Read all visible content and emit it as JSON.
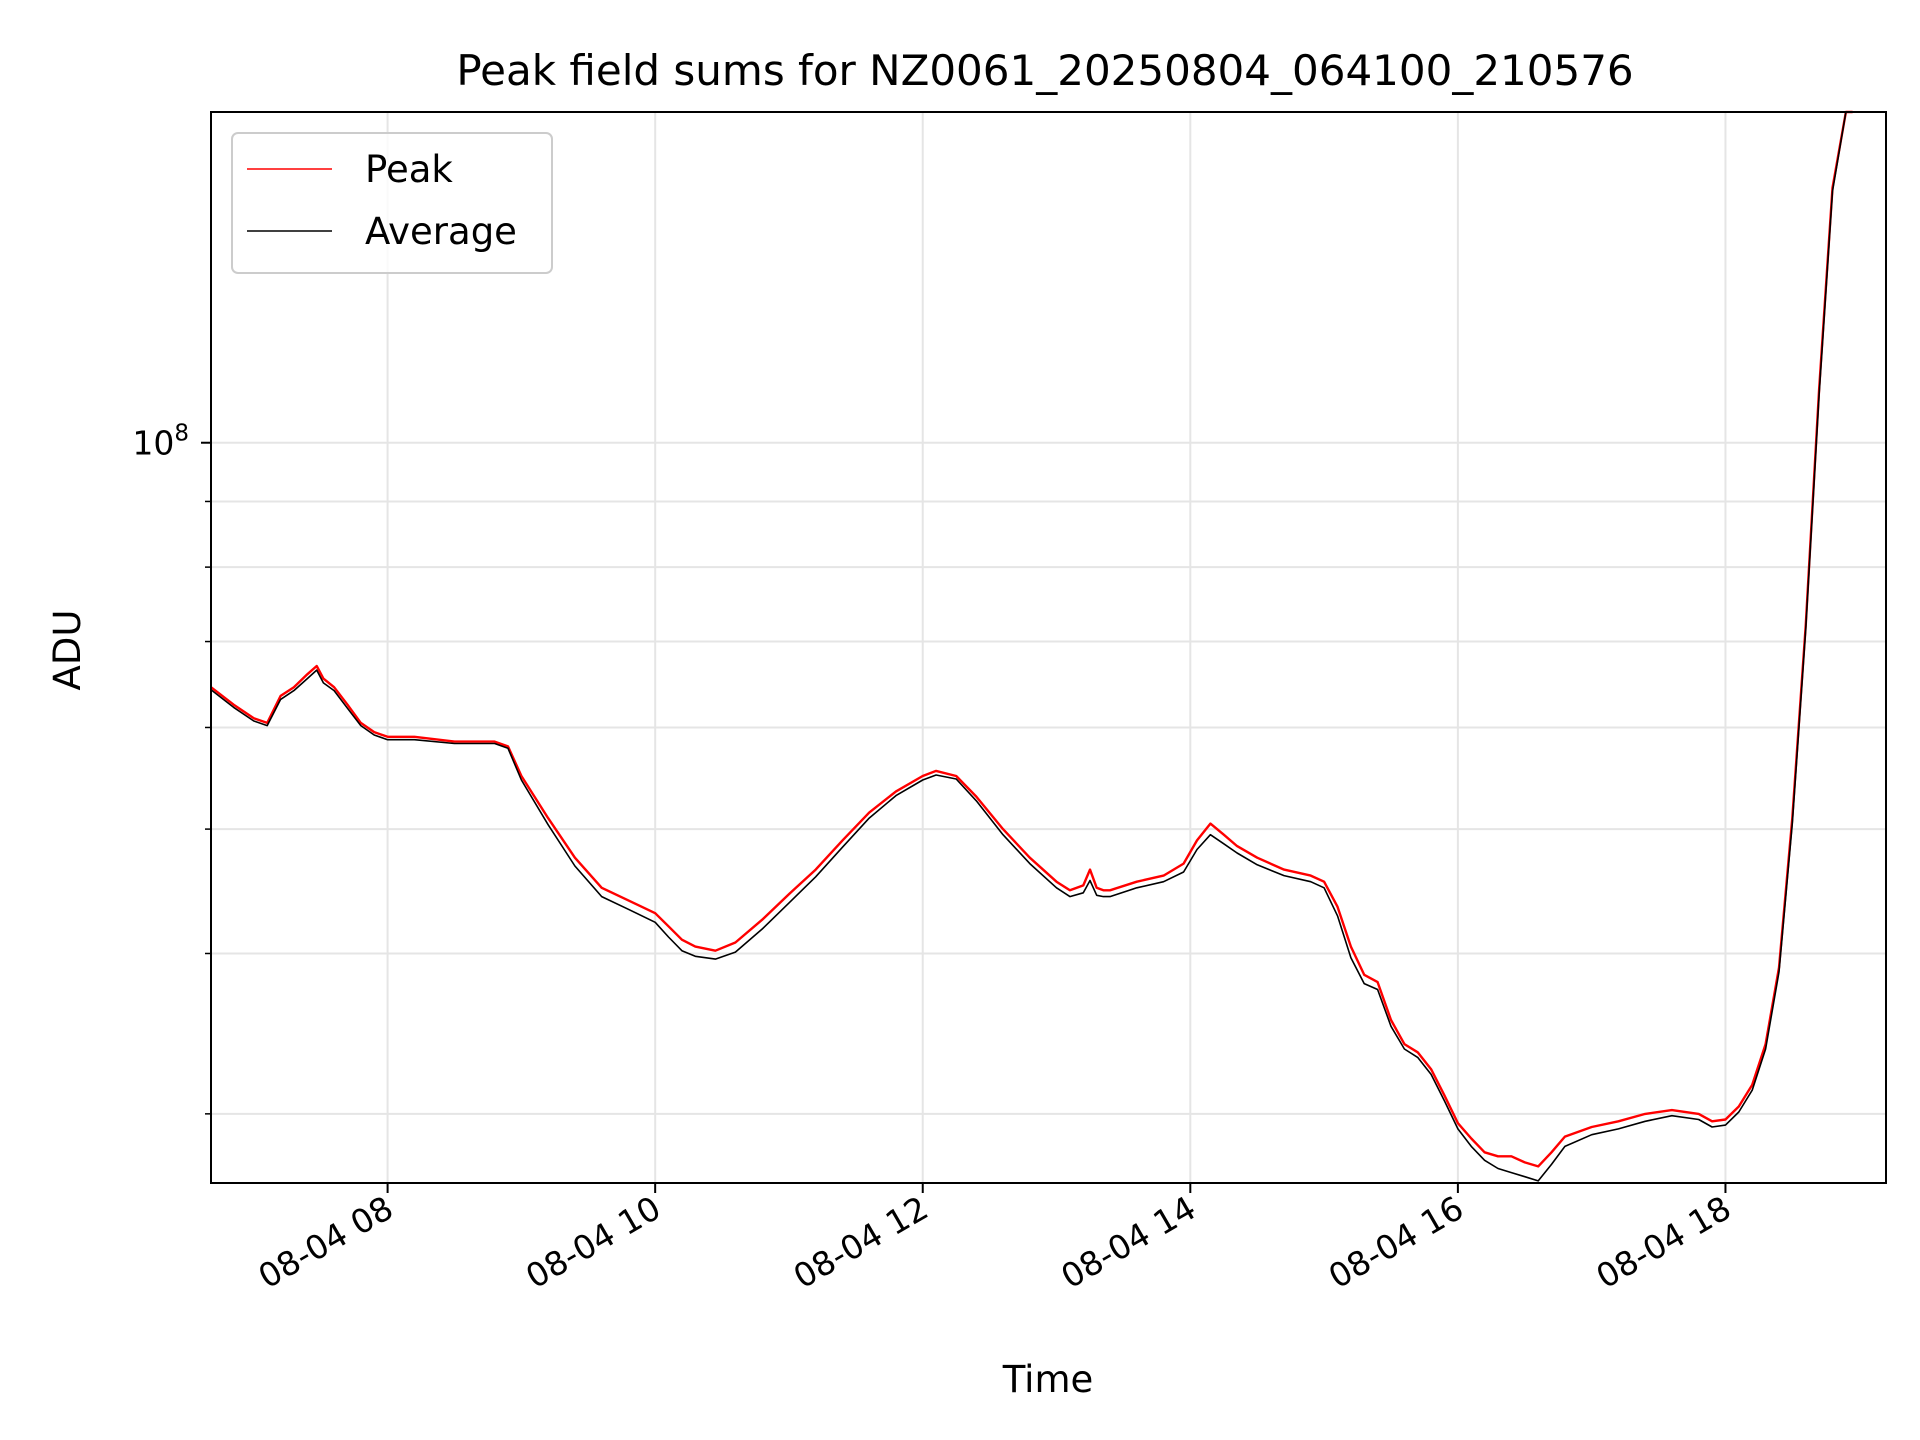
{
  "chart_data": {
    "type": "line",
    "title": "Peak field sums for NZ0061_20250804_064100_210576",
    "xlabel": "Time",
    "ylabel": "ADU",
    "x_unit": "hour of 2025-08-04",
    "xlim": [
      6.68,
      19.2
    ],
    "y_scale": "log",
    "ylim": [
      26500000,
      181000000
    ],
    "grid": true,
    "legend_position": "top-left",
    "x_ticks": [
      {
        "value": 8,
        "label": "08-04 08"
      },
      {
        "value": 10,
        "label": "08-04 10"
      },
      {
        "value": 12,
        "label": "08-04 12"
      },
      {
        "value": 14,
        "label": "08-04 14"
      },
      {
        "value": 16,
        "label": "08-04 16"
      },
      {
        "value": 18,
        "label": "08-04 18"
      }
    ],
    "y_major_ticks": [
      {
        "value": 100000000,
        "label_base": "10",
        "label_exp": "8"
      }
    ],
    "y_minor_ticks": [
      30000000,
      40000000,
      50000000,
      60000000,
      70000000,
      80000000,
      90000000,
      200000000
    ],
    "colors": {
      "peak": "#ff0000",
      "average": "#000000"
    },
    "series": [
      {
        "name": "Peak",
        "color": "#ff0000",
        "x": [
          6.68,
          6.85,
          7.0,
          7.1,
          7.2,
          7.3,
          7.4,
          7.47,
          7.52,
          7.6,
          7.7,
          7.8,
          7.9,
          8.0,
          8.2,
          8.5,
          8.8,
          8.9,
          9.0,
          9.2,
          9.4,
          9.6,
          9.8,
          10.0,
          10.1,
          10.2,
          10.3,
          10.45,
          10.6,
          10.8,
          11.0,
          11.2,
          11.4,
          11.6,
          11.8,
          12.0,
          12.1,
          12.25,
          12.4,
          12.6,
          12.8,
          13.0,
          13.1,
          13.2,
          13.25,
          13.3,
          13.35,
          13.4,
          13.6,
          13.8,
          13.95,
          14.05,
          14.15,
          14.25,
          14.35,
          14.5,
          14.7,
          14.9,
          15.0,
          15.1,
          15.2,
          15.3,
          15.4,
          15.5,
          15.6,
          15.7,
          15.8,
          15.9,
          16.0,
          16.1,
          16.2,
          16.3,
          16.4,
          16.5,
          16.6,
          16.7,
          16.8,
          17.0,
          17.2,
          17.4,
          17.6,
          17.8,
          17.9,
          18.0,
          18.1,
          18.2,
          18.3,
          18.4,
          18.5,
          18.6,
          18.7,
          18.8,
          18.9,
          18.95
        ],
        "values": [
          64500000,
          62500000,
          61000000,
          60500000,
          63500000,
          64500000,
          66000000,
          67000000,
          65500000,
          64500000,
          62500000,
          60500000,
          59500000,
          59000000,
          59000000,
          58500000,
          58500000,
          58000000,
          55000000,
          51000000,
          47500000,
          45000000,
          44000000,
          43000000,
          42000000,
          41000000,
          40500000,
          40200000,
          40800000,
          42500000,
          44500000,
          46500000,
          49000000,
          51500000,
          53500000,
          55000000,
          55500000,
          55000000,
          53000000,
          50000000,
          47500000,
          45500000,
          44800000,
          45200000,
          46500000,
          45000000,
          44800000,
          44800000,
          45500000,
          46000000,
          47000000,
          49000000,
          50500000,
          49500000,
          48500000,
          47500000,
          46500000,
          46000000,
          45500000,
          43500000,
          40500000,
          38500000,
          38000000,
          35500000,
          34000000,
          33500000,
          32500000,
          31000000,
          29500000,
          28700000,
          28000000,
          27800000,
          27800000,
          27500000,
          27300000,
          28000000,
          28800000,
          29300000,
          29600000,
          30000000,
          30200000,
          30000000,
          29600000,
          29700000,
          30400000,
          31600000,
          34000000,
          39000000,
          51000000,
          72000000,
          110000000,
          158000000,
          181000000,
          181000000
        ]
      },
      {
        "name": "Average",
        "color": "#000000",
        "x": [
          6.68,
          6.85,
          7.0,
          7.1,
          7.2,
          7.3,
          7.4,
          7.47,
          7.52,
          7.6,
          7.7,
          7.8,
          7.9,
          8.0,
          8.2,
          8.5,
          8.8,
          8.9,
          9.0,
          9.2,
          9.4,
          9.6,
          9.8,
          10.0,
          10.1,
          10.2,
          10.3,
          10.45,
          10.6,
          10.8,
          11.0,
          11.2,
          11.4,
          11.6,
          11.8,
          12.0,
          12.1,
          12.25,
          12.4,
          12.6,
          12.8,
          13.0,
          13.1,
          13.2,
          13.25,
          13.3,
          13.35,
          13.4,
          13.6,
          13.8,
          13.95,
          14.05,
          14.15,
          14.25,
          14.35,
          14.5,
          14.7,
          14.9,
          15.0,
          15.1,
          15.2,
          15.3,
          15.4,
          15.5,
          15.6,
          15.7,
          15.8,
          15.9,
          16.0,
          16.1,
          16.2,
          16.3,
          16.4,
          16.5,
          16.6,
          16.7,
          16.8,
          17.0,
          17.2,
          17.4,
          17.6,
          17.8,
          17.9,
          18.0,
          18.1,
          18.2,
          18.3,
          18.4,
          18.5,
          18.6,
          18.7,
          18.8,
          18.9,
          18.95
        ],
        "values": [
          64200000,
          62200000,
          60700000,
          60200000,
          63100000,
          64100000,
          65500000,
          66500000,
          65000000,
          64100000,
          62100000,
          60200000,
          59200000,
          58700000,
          58700000,
          58300000,
          58300000,
          57800000,
          54600000,
          50400000,
          46800000,
          44300000,
          43300000,
          42300000,
          41200000,
          40200000,
          39800000,
          39600000,
          40100000,
          41800000,
          43800000,
          45900000,
          48400000,
          51000000,
          53100000,
          54600000,
          55100000,
          54700000,
          52600000,
          49500000,
          47000000,
          45000000,
          44300000,
          44600000,
          45600000,
          44400000,
          44300000,
          44300000,
          45000000,
          45500000,
          46300000,
          48200000,
          49500000,
          48700000,
          47900000,
          46900000,
          46000000,
          45500000,
          45000000,
          42800000,
          39700000,
          37900000,
          37500000,
          35100000,
          33700000,
          33200000,
          32200000,
          30700000,
          29200000,
          28300000,
          27600000,
          27200000,
          27000000,
          26800000,
          26600000,
          27400000,
          28300000,
          28900000,
          29200000,
          29600000,
          29900000,
          29700000,
          29300000,
          29400000,
          30100000,
          31300000,
          33700000,
          38700000,
          50500000,
          71500000,
          109000000,
          157000000,
          181000000,
          181000000
        ]
      }
    ]
  }
}
